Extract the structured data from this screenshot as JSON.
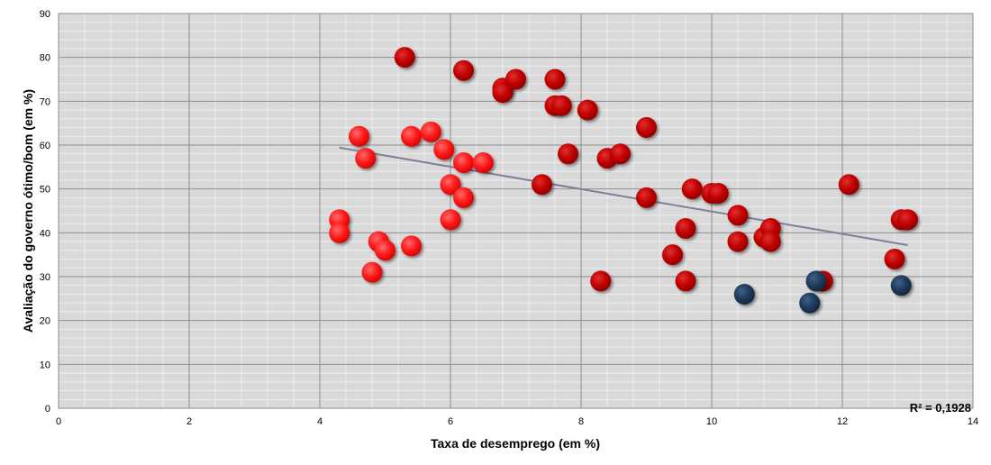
{
  "chart_data": {
    "type": "scatter",
    "xlabel": "Taxa de desemprego (em %)",
    "ylabel": "Avaliação do governo ótimo/bom (em %)",
    "xlim": [
      0,
      14
    ],
    "ylim": [
      0,
      90
    ],
    "x_ticks": [
      0,
      2,
      4,
      6,
      8,
      10,
      12,
      14
    ],
    "y_ticks": [
      0,
      10,
      20,
      30,
      40,
      50,
      60,
      70,
      80,
      90
    ],
    "grid": true,
    "annotation": "R² = 0,1928",
    "colors": {
      "bright": "#ff1a1a",
      "dark_red": "#c00000",
      "navy": "#1f3a5a",
      "trendline": "#7f7f95",
      "plot_bg": "#d9d9d9"
    },
    "trendline": {
      "x": [
        4.3,
        13.0
      ],
      "y": [
        59.4,
        37.2
      ]
    },
    "series": [
      {
        "color_key": "bright",
        "points": [
          [
            4.3,
            43
          ],
          [
            4.3,
            40
          ],
          [
            4.6,
            62
          ],
          [
            4.7,
            57
          ],
          [
            4.8,
            31
          ],
          [
            4.9,
            38
          ],
          [
            5.0,
            36
          ],
          [
            5.4,
            62
          ],
          [
            5.4,
            37
          ],
          [
            5.7,
            63
          ],
          [
            5.9,
            59
          ],
          [
            6.0,
            51
          ],
          [
            6.0,
            43
          ],
          [
            6.2,
            56
          ],
          [
            6.2,
            48
          ],
          [
            6.5,
            56
          ]
        ]
      },
      {
        "color_key": "dark_red",
        "points": [
          [
            5.3,
            80
          ],
          [
            6.2,
            77
          ],
          [
            6.8,
            73
          ],
          [
            6.8,
            72
          ],
          [
            7.0,
            75
          ],
          [
            7.4,
            51
          ],
          [
            7.6,
            75
          ],
          [
            7.6,
            69
          ],
          [
            7.7,
            69
          ],
          [
            7.8,
            58
          ],
          [
            8.1,
            68
          ],
          [
            8.3,
            29
          ],
          [
            8.4,
            57
          ],
          [
            8.6,
            58
          ],
          [
            9.0,
            64
          ],
          [
            9.0,
            48
          ],
          [
            9.4,
            35
          ],
          [
            9.6,
            41
          ],
          [
            9.6,
            29
          ],
          [
            9.7,
            50
          ],
          [
            10.0,
            49
          ],
          [
            10.1,
            49
          ],
          [
            10.4,
            44
          ],
          [
            10.4,
            38
          ],
          [
            10.8,
            39
          ],
          [
            10.9,
            41
          ],
          [
            10.9,
            38
          ],
          [
            11.7,
            29
          ],
          [
            12.1,
            51
          ],
          [
            12.8,
            34
          ],
          [
            12.9,
            43
          ],
          [
            13.0,
            43
          ]
        ]
      },
      {
        "color_key": "navy",
        "points": [
          [
            10.5,
            26
          ],
          [
            11.5,
            24
          ],
          [
            11.6,
            29
          ],
          [
            12.9,
            28
          ]
        ]
      }
    ]
  }
}
